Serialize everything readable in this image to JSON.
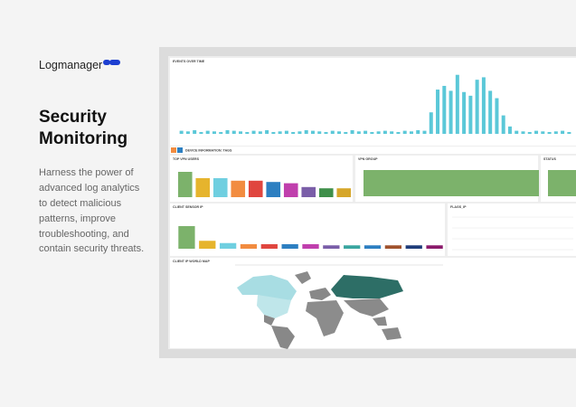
{
  "brand": "Logmanager",
  "headline": [
    "Security",
    "Monitoring"
  ],
  "description": [
    "Harness the power of",
    "advanced log analytics",
    "to detect malicious",
    "patterns, improve",
    "troubleshooting, and",
    "contain security threats."
  ],
  "dashboard": {
    "events": {
      "title": "EVENTS OVER TIME",
      "color": "#5bc8d8",
      "ylim": [
        0,
        100
      ],
      "values": [
        5,
        4,
        6,
        3,
        5,
        4,
        3,
        6,
        5,
        4,
        3,
        5,
        4,
        6,
        3,
        4,
        5,
        3,
        4,
        6,
        5,
        4,
        3,
        5,
        4,
        3,
        6,
        4,
        5,
        3,
        4,
        5,
        4,
        3,
        5,
        4,
        6,
        5,
        35,
        72,
        78,
        70,
        96,
        68,
        62,
        88,
        92,
        70,
        58,
        30,
        12,
        5,
        4,
        3,
        5,
        4,
        3,
        4,
        5,
        3
      ]
    },
    "tags_title": "DEVICE INFORMATION: TAGS",
    "top_vpn_users": {
      "title": "TOP VPN USERS",
      "ylim": [
        0,
        100
      ],
      "values": [
        100,
        75,
        75,
        65,
        65,
        60,
        55,
        40,
        35,
        35
      ],
      "colors": [
        "#7cb26b",
        "#e6b42d",
        "#6fcfe0",
        "#f28c40",
        "#e0463f",
        "#2d7fc1",
        "#c03fad",
        "#7a5ea8",
        "#3f8f4a",
        "#d6a62a"
      ]
    },
    "vpn_group": {
      "title": "VPN GROUP",
      "ylim": [
        0,
        100
      ],
      "values": [
        100
      ],
      "colors": [
        "#7cb26b"
      ]
    },
    "status": {
      "title": "STATUS",
      "ylim": [
        0,
        100
      ],
      "values": [
        100
      ],
      "colors": [
        "#7cb26b"
      ]
    },
    "client_sensor_ip": {
      "title": "CLIENT SENSOR IP",
      "ylim": [
        0,
        100
      ],
      "values": [
        100,
        35,
        25,
        20,
        20,
        20,
        20,
        15,
        15,
        15,
        15,
        15,
        15
      ],
      "colors": [
        "#7cb26b",
        "#e6b42d",
        "#6fcfe0",
        "#f28c40",
        "#e0463f",
        "#2d7fc1",
        "#c03fad",
        "#7a5ea8",
        "#3aa6a0",
        "#2d7fc1",
        "#a0522d",
        "#1f3d7a",
        "#8b1a6b"
      ]
    },
    "flags_ip": {
      "title": "FLAGS_IP"
    },
    "world_map": {
      "title": "CLIENT IP WORLD MAP"
    }
  }
}
